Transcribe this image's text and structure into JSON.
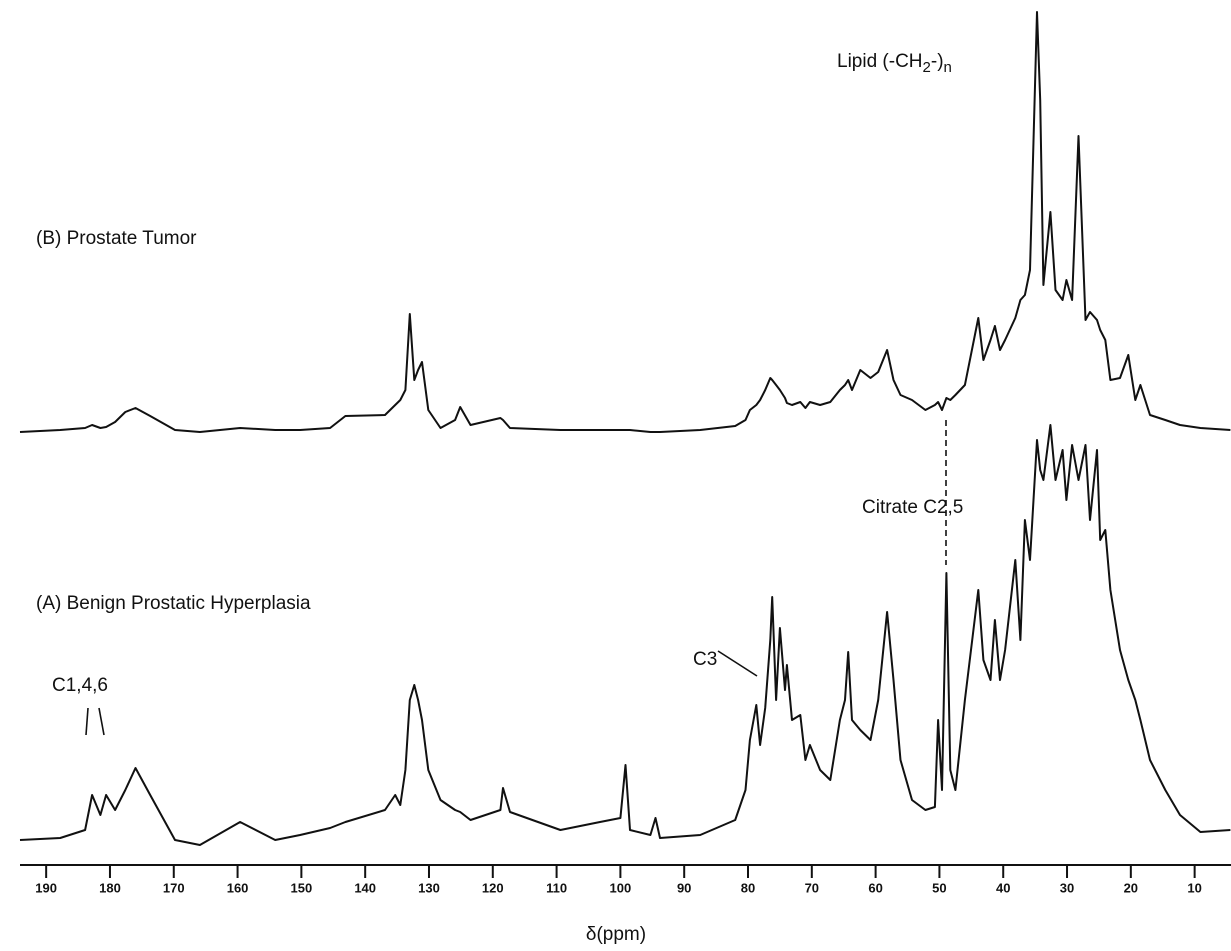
{
  "chart_data": {
    "type": "line",
    "x_label": "δ(ppm)",
    "xlim": [
      194.1,
      4.3
    ],
    "ylim": [
      0,
      865
    ],
    "xticks": [
      190,
      180,
      170,
      160,
      150,
      140,
      130,
      120,
      110,
      100,
      90,
      80,
      70,
      60,
      50,
      40,
      30,
      20,
      10
    ],
    "x": [
      194.1,
      187.8,
      183.9,
      182.8,
      181.5,
      180.6,
      179.2,
      177.6,
      176.0,
      173.7,
      169.8,
      165.9,
      159.6,
      154.1,
      150.2,
      145.5,
      143.1,
      136.9,
      135.3,
      134.5,
      133.7,
      133.0,
      132.3,
      131.7,
      131.1,
      130.1,
      128.2,
      125.9,
      125.1,
      123.5,
      118.8,
      118.4,
      117.3,
      109.4,
      103.2,
      100.0,
      99.2,
      98.5,
      95.3,
      94.5,
      93.8,
      87.5,
      82.0,
      80.4,
      79.7,
      78.7,
      78.1,
      77.3,
      76.5,
      76.2,
      75.6,
      75.0,
      74.2,
      73.9,
      73.1,
      71.8,
      71.0,
      70.3,
      68.7,
      67.1,
      65.6,
      64.8,
      64.3,
      63.7,
      62.4,
      60.8,
      59.6,
      58.2,
      57.2,
      56.1,
      54.3,
      52.2,
      50.7,
      50.2,
      49.6,
      48.9,
      48.3,
      47.5,
      46.0,
      43.9,
      43.1,
      42.0,
      41.3,
      40.5,
      39.7,
      38.1,
      37.3,
      36.6,
      35.8,
      34.7,
      34.2,
      33.7,
      32.6,
      31.8,
      30.7,
      30.1,
      29.2,
      28.2,
      27.1,
      26.4,
      25.3,
      24.8,
      24.0,
      23.2,
      21.7,
      20.4,
      19.3,
      18.5,
      17.0,
      14.6,
      12.3,
      9.1,
      4.4
    ],
    "series": [
      {
        "name": "(B) Prostate Tumor",
        "color": "#111111",
        "values": [
          433,
          435,
          437,
          440,
          437,
          438,
          443,
          453,
          457,
          449,
          435,
          433,
          437,
          435,
          435,
          437,
          449,
          450,
          460,
          465,
          475,
          551,
          485,
          495,
          503,
          455,
          437,
          445,
          458,
          440,
          447,
          445,
          437,
          435,
          435,
          435,
          435,
          435,
          433,
          433,
          433,
          435,
          439,
          445,
          455,
          460,
          465,
          475,
          487,
          485,
          480,
          475,
          467,
          462,
          460,
          463,
          457,
          463,
          460,
          463,
          475,
          480,
          485,
          475,
          495,
          487,
          493,
          515,
          485,
          470,
          465,
          455,
          460,
          463,
          455,
          467,
          465,
          470,
          480,
          547,
          505,
          525,
          539,
          515,
          525,
          547,
          565,
          570,
          595,
          853,
          765,
          580,
          653,
          575,
          565,
          585,
          565,
          729,
          545,
          553,
          545,
          535,
          525,
          485,
          487,
          510,
          465,
          480,
          450,
          445,
          440,
          437,
          435
        ]
      },
      {
        "name": "(A) Benign Prostatic Hyperplasia",
        "color": "#111111",
        "values": [
          25,
          27,
          35,
          70,
          50,
          70,
          55,
          75,
          97,
          70,
          25,
          20,
          43,
          25,
          30,
          37,
          43,
          55,
          70,
          60,
          95,
          165,
          180,
          165,
          145,
          95,
          65,
          55,
          53,
          45,
          55,
          77,
          53,
          35,
          43,
          47,
          100,
          35,
          30,
          47,
          27,
          30,
          45,
          75,
          125,
          160,
          120,
          157,
          225,
          268,
          165,
          237,
          175,
          200,
          145,
          150,
          105,
          120,
          95,
          85,
          145,
          165,
          213,
          145,
          135,
          125,
          165,
          253,
          185,
          105,
          65,
          55,
          58,
          145,
          75,
          292,
          95,
          75,
          165,
          275,
          205,
          185,
          245,
          185,
          215,
          305,
          225,
          345,
          305,
          425,
          395,
          385,
          440,
          385,
          415,
          365,
          420,
          385,
          420,
          345,
          415,
          325,
          335,
          275,
          215,
          185,
          165,
          145,
          105,
          75,
          50,
          33,
          35
        ]
      }
    ],
    "annotations": [
      {
        "text": [
          "Lipid (-CH",
          "2",
          "-)",
          "n"
        ]
      },
      {
        "text": "Citrate C2,5"
      },
      {
        "text": "C3"
      },
      {
        "text": "C1,4,6"
      }
    ]
  }
}
